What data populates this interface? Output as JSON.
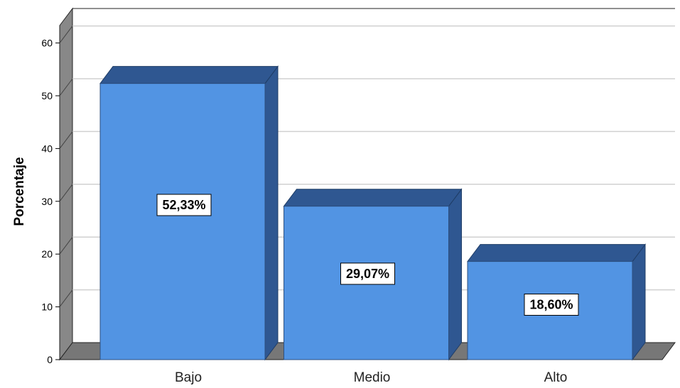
{
  "chart_data": {
    "type": "bar",
    "categories": [
      "Bajo",
      "Medio",
      "Alto"
    ],
    "values": [
      52.33,
      29.07,
      18.6
    ],
    "data_labels": [
      "52,33%",
      "29,07%",
      "18,60%"
    ],
    "title": "",
    "xlabel": "",
    "ylabel": "Porcentaje",
    "ylim": [
      0,
      63
    ],
    "yticks": [
      0,
      10,
      20,
      30,
      40,
      50,
      60
    ],
    "grid": true,
    "style": "3d",
    "colors": {
      "bar_front": "#5294e3",
      "bar_top": "#2f5791",
      "bar_side": "#2f5791",
      "floor": "#777777",
      "wall_side": "#888888",
      "gridline": "#d0d0d0"
    }
  }
}
